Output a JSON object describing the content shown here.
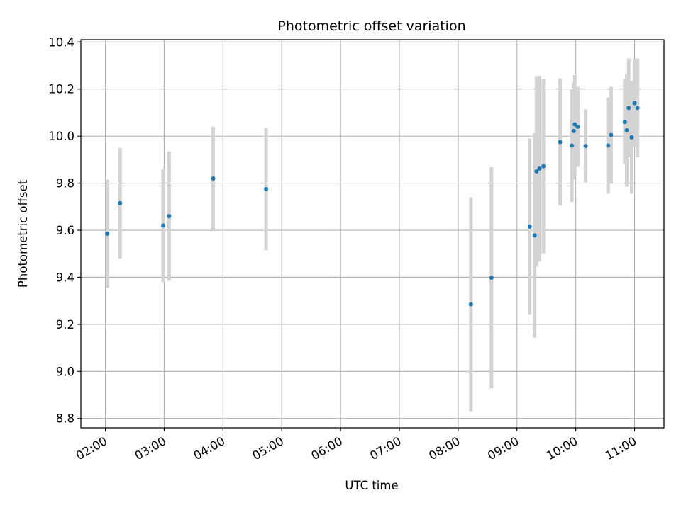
{
  "chart_data": {
    "type": "scatter",
    "title": "Photometric offset variation",
    "xlabel": "UTC time",
    "ylabel": "Photometric offset",
    "x_tick_labels": [
      "02:00",
      "03:00",
      "04:00",
      "05:00",
      "06:00",
      "07:00",
      "08:00",
      "09:00",
      "10:00",
      "11:00"
    ],
    "y_tick_labels": [
      "8.8",
      "9.0",
      "9.2",
      "9.4",
      "9.6",
      "9.8",
      "10.0",
      "10.2",
      "10.4"
    ],
    "xlim": [
      "01:35",
      "11:30"
    ],
    "ylim": [
      8.76,
      10.41
    ],
    "grid": true,
    "series": [
      {
        "marker_color": "#1f77b4",
        "errorbar_color": "#d3d3d3",
        "points": [
          {
            "x": "02:02",
            "y": 9.585,
            "err": 0.23
          },
          {
            "x": "02:15",
            "y": 9.715,
            "err": 0.235
          },
          {
            "x": "02:59",
            "y": 9.62,
            "err": 0.24
          },
          {
            "x": "03:05",
            "y": 9.66,
            "err": 0.275
          },
          {
            "x": "03:50",
            "y": 9.82,
            "err": 0.22
          },
          {
            "x": "04:44",
            "y": 9.775,
            "err": 0.26
          },
          {
            "x": "08:13",
            "y": 9.285,
            "err": 0.455
          },
          {
            "x": "08:34",
            "y": 9.398,
            "err": 0.47
          },
          {
            "x": "09:13",
            "y": 9.615,
            "err": 0.375
          },
          {
            "x": "09:18",
            "y": 9.578,
            "err": 0.435
          },
          {
            "x": "09:20",
            "y": 9.85,
            "err": 0.405
          },
          {
            "x": "09:23",
            "y": 9.862,
            "err": 0.395
          },
          {
            "x": "09:27",
            "y": 9.872,
            "err": 0.37
          },
          {
            "x": "09:44",
            "y": 9.975,
            "err": 0.27
          },
          {
            "x": "09:56",
            "y": 9.96,
            "err": 0.24
          },
          {
            "x": "09:58",
            "y": 10.022,
            "err": 0.205
          },
          {
            "x": "09:59",
            "y": 10.05,
            "err": 0.21
          },
          {
            "x": "10:02",
            "y": 10.04,
            "err": 0.17
          },
          {
            "x": "10:10",
            "y": 9.958,
            "err": 0.155
          },
          {
            "x": "10:33",
            "y": 9.96,
            "err": 0.205
          },
          {
            "x": "10:36",
            "y": 10.005,
            "err": 0.205
          },
          {
            "x": "10:50",
            "y": 10.06,
            "err": 0.18
          },
          {
            "x": "10:52",
            "y": 10.025,
            "err": 0.24
          },
          {
            "x": "10:54",
            "y": 10.12,
            "err": 0.21
          },
          {
            "x": "10:57",
            "y": 9.995,
            "err": 0.24
          },
          {
            "x": "11:00",
            "y": 10.14,
            "err": 0.19
          },
          {
            "x": "11:03",
            "y": 10.12,
            "err": 0.21
          }
        ]
      }
    ]
  }
}
